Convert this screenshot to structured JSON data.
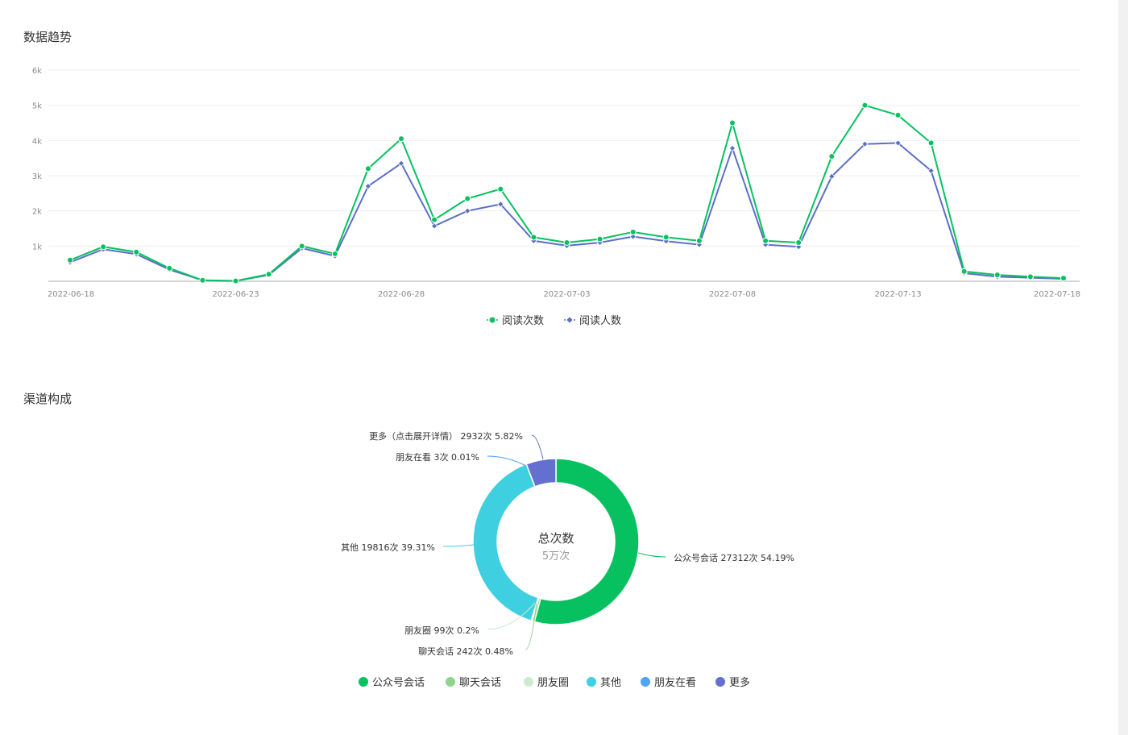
{
  "sections": {
    "trend_title": "数据趋势",
    "channel_title": "渠道构成"
  },
  "chart_data": [
    {
      "type": "line",
      "title": "数据趋势",
      "x": [
        "2022-06-18",
        "2022-06-19",
        "2022-06-20",
        "2022-06-21",
        "2022-06-22",
        "2022-06-23",
        "2022-06-24",
        "2022-06-25",
        "2022-06-26",
        "2022-06-27",
        "2022-06-28",
        "2022-06-29",
        "2022-06-30",
        "2022-07-01",
        "2022-07-02",
        "2022-07-03",
        "2022-07-04",
        "2022-07-05",
        "2022-07-06",
        "2022-07-07",
        "2022-07-08",
        "2022-07-09",
        "2022-07-10",
        "2022-07-11",
        "2022-07-12",
        "2022-07-13",
        "2022-07-14",
        "2022-07-15",
        "2022-07-16",
        "2022-07-17",
        "2022-07-18"
      ],
      "x_ticks": [
        "2022-06-18",
        "2022-06-23",
        "2022-06-28",
        "2022-07-03",
        "2022-07-08",
        "2022-07-13",
        "2022-07-18"
      ],
      "y_ticks": [
        "1k",
        "2k",
        "3k",
        "4k",
        "5k",
        "6k"
      ],
      "ylim": [
        0,
        6000
      ],
      "series": [
        {
          "name": "阅读次数",
          "color": "#07c160",
          "marker": "circle",
          "values": [
            600,
            980,
            830,
            370,
            30,
            10,
            200,
            1000,
            780,
            3200,
            4050,
            1750,
            2350,
            2620,
            1250,
            1100,
            1200,
            1400,
            1250,
            1150,
            4500,
            1150,
            1100,
            3550,
            5000,
            4720,
            3930,
            280,
            180,
            130,
            90
          ]
        },
        {
          "name": "阅读人数",
          "color": "#5b6fc7",
          "marker": "diamond",
          "values": [
            540,
            910,
            770,
            330,
            28,
            8,
            180,
            940,
            720,
            2700,
            3350,
            1570,
            2000,
            2190,
            1150,
            1010,
            1100,
            1270,
            1140,
            1040,
            3780,
            1040,
            980,
            2980,
            3900,
            3930,
            3140,
            230,
            130,
            100,
            70
          ]
        }
      ],
      "legend_position": "bottom",
      "grid": true
    },
    {
      "type": "pie",
      "title": "渠道构成",
      "center_title": "总次数",
      "center_value": "5万次",
      "slices": [
        {
          "name": "公众号会话",
          "label": "公众号会话 27312次 54.19%",
          "value": 27312,
          "percent": 54.19,
          "color": "#07c160"
        },
        {
          "name": "聊天会话",
          "label": "聊天会话 242次 0.48%",
          "value": 242,
          "percent": 0.48,
          "color": "#91d38c"
        },
        {
          "name": "朋友圈",
          "label": "朋友圈 99次 0.2%",
          "value": 99,
          "percent": 0.2,
          "color": "#cdeccf"
        },
        {
          "name": "其他",
          "label": "其他 19816次 39.31%",
          "value": 19816,
          "percent": 39.31,
          "color": "#3ecfe0"
        },
        {
          "name": "朋友在看",
          "label": "朋友在看 3次 0.01%",
          "value": 3,
          "percent": 0.01,
          "color": "#4fa3f5"
        },
        {
          "name": "更多",
          "label": "更多（点击展开详情） 2932次 5.82%",
          "value": 2932,
          "percent": 5.82,
          "color": "#6470cf"
        }
      ],
      "legend_position": "bottom"
    }
  ]
}
